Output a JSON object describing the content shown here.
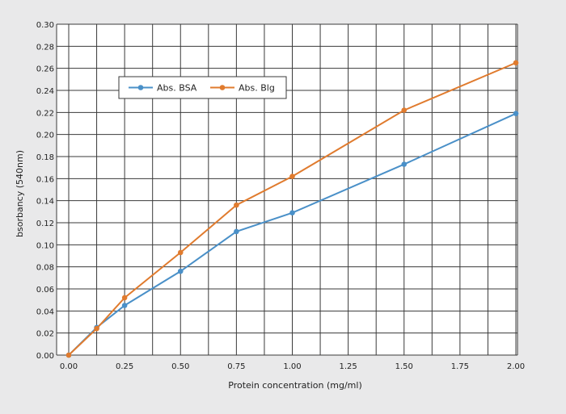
{
  "chart_data": {
    "type": "line",
    "title": "",
    "xlabel": "Protein concentration (mg/ml)",
    "ylabel": "bsorbancy (540nm)",
    "xlim": [
      0,
      2
    ],
    "ylim": [
      0,
      0.3
    ],
    "x_ticks": [
      0,
      0.25,
      0.5,
      0.75,
      1.0,
      1.25,
      1.5,
      1.75,
      2.0
    ],
    "x_tick_labels": [
      "0.00",
      "0.25",
      "0.50",
      "0.75",
      "1.00",
      "1.25",
      "1.50",
      "1.75",
      "2.00"
    ],
    "y_ticks": [
      0,
      0.02,
      0.04,
      0.06,
      0.08,
      0.1,
      0.12,
      0.14,
      0.16,
      0.18,
      0.2,
      0.22,
      0.24,
      0.26,
      0.28,
      0.3
    ],
    "y_tick_labels": [
      "0.00",
      "0.02",
      "0.04",
      "0.06",
      "0.08",
      "0.10",
      "0.12",
      "0.14",
      "0.16",
      "0.18",
      "0.20",
      "0.22",
      "0.24",
      "0.26",
      "0.28",
      "0.30"
    ],
    "grid": true,
    "legend_position": "top-left",
    "series": [
      {
        "name": "Abs. BSA",
        "color": "#4a90c8",
        "x": [
          0,
          0.125,
          0.25,
          0.5,
          0.75,
          1.0,
          1.5,
          2.0
        ],
        "y": [
          0,
          0.025,
          0.045,
          0.076,
          0.112,
          0.129,
          0.173,
          0.219
        ]
      },
      {
        "name": "Abs. Blg",
        "color": "#e07b2e",
        "x": [
          0,
          0.125,
          0.25,
          0.5,
          0.75,
          1.0,
          1.5,
          2.0
        ],
        "y": [
          0,
          0.024,
          0.052,
          0.093,
          0.136,
          0.162,
          0.222,
          0.265
        ]
      }
    ]
  }
}
